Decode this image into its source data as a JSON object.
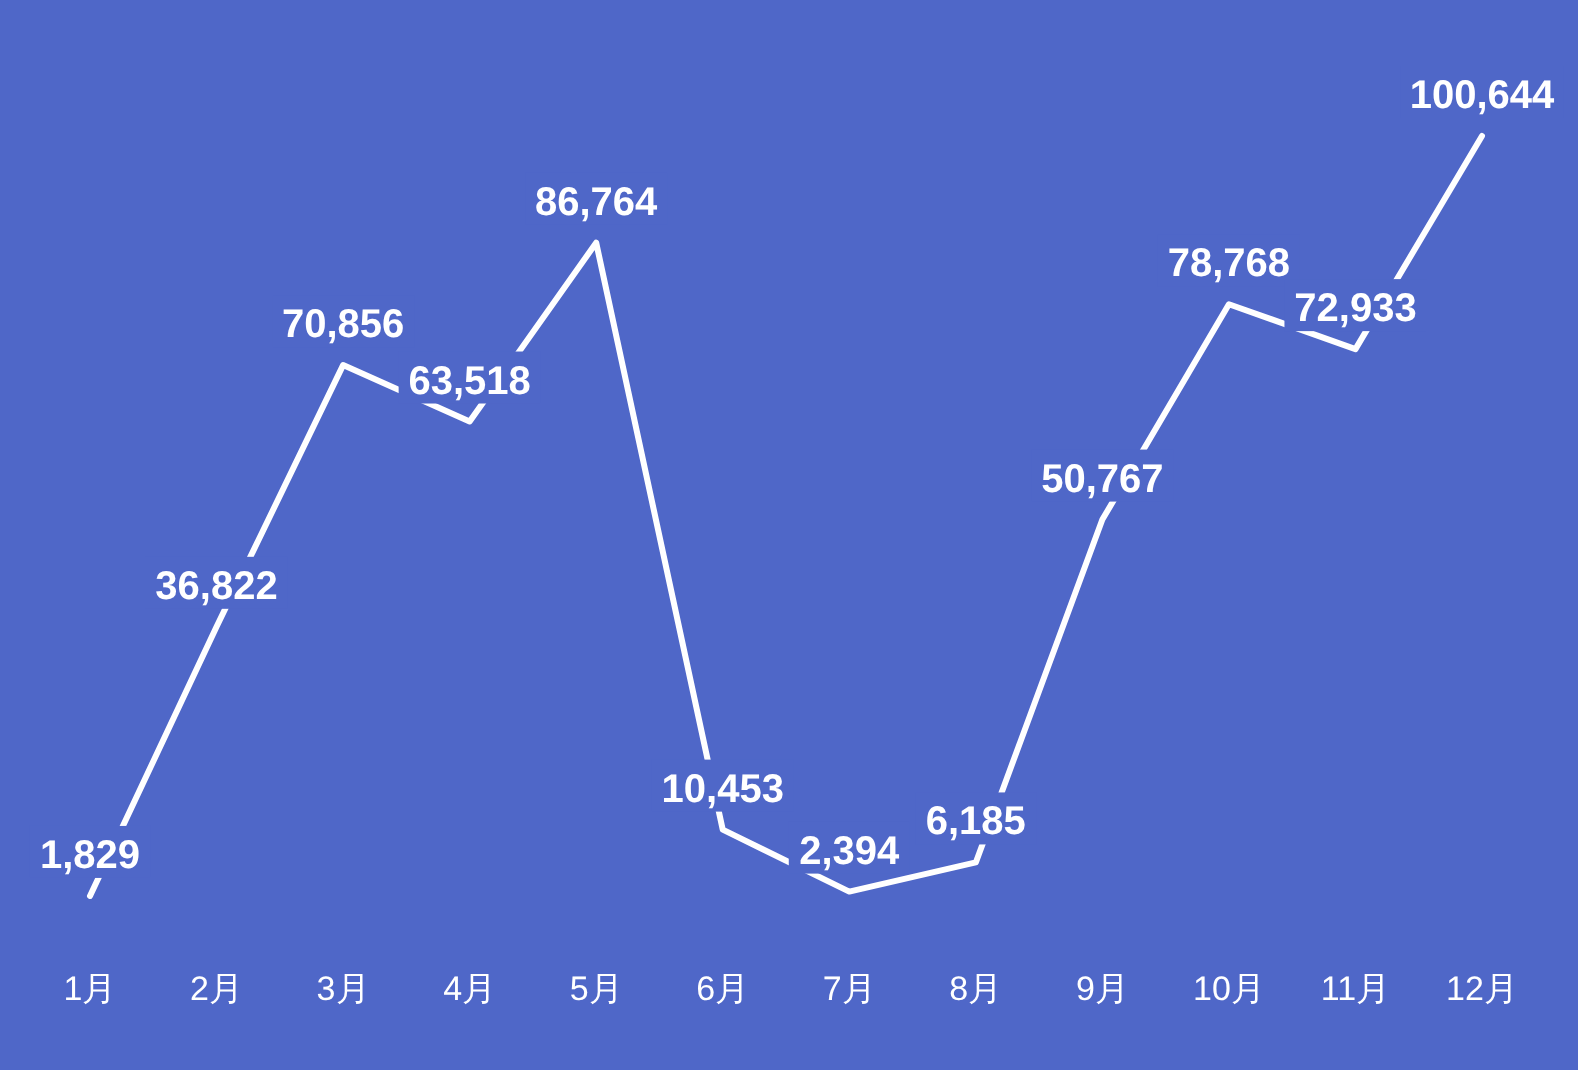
{
  "chart_data": {
    "type": "line",
    "categories": [
      "1月",
      "2月",
      "3月",
      "4月",
      "5月",
      "6月",
      "7月",
      "8月",
      "9月",
      "10月",
      "11月",
      "12月"
    ],
    "series": [
      {
        "color": "#ffffff",
        "values": [
          1829,
          36822,
          70856,
          63518,
          86764,
          10453,
          2394,
          6185,
          50767,
          78768,
          72933,
          100644
        ],
        "value_labels": [
          "1,829",
          "36,822",
          "70,856",
          "63,518",
          "86,764",
          "10,453",
          "2,394",
          "6,185",
          "50,767",
          "78,768",
          "72,933",
          "100,644"
        ]
      }
    ]
  }
}
